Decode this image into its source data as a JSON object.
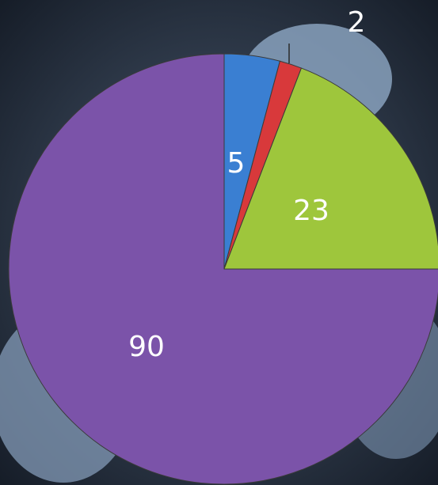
{
  "chart_data": {
    "type": "pie",
    "values": [
      5,
      2,
      23,
      90
    ],
    "colors": [
      "#3a7fd2",
      "#d8393b",
      "#9ec63c",
      "#7b53a9"
    ]
  }
}
